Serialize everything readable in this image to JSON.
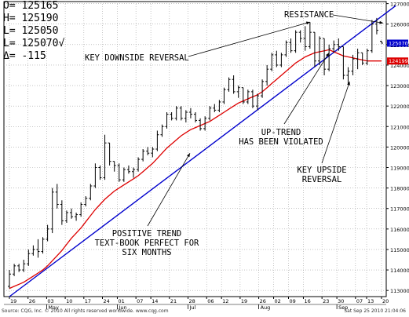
{
  "ohlc_readout": {
    "open": "O= 125165",
    "high": "H= 125190",
    "low": "L= 125050",
    "last": "L= 125070√",
    "delta": "Δ=    -115"
  },
  "footer": {
    "source": "Source: CQG, Inc. © 2010 All rights reserved worldwide. www.cqg.com",
    "timestamp": "Sat Sep 25 2010 21:04:06"
  },
  "colors": {
    "bars": "#000000",
    "moving_average": "#dd0000",
    "trend_line": "#0000cc",
    "grid": "#a0a0a0",
    "last_price_tag": "#0000cc",
    "ma_price_tag": "#dd0000"
  },
  "chart_data": {
    "type": "ohlc",
    "x_axis": {
      "day_ticks": [
        "19",
        "26",
        "03",
        "10",
        "17",
        "24",
        "01",
        "07",
        "14",
        "21",
        "28",
        "06",
        "12",
        "19",
        "26",
        "02",
        "09",
        "16",
        "23",
        "30",
        "07",
        "13",
        "20"
      ],
      "month_labels": [
        "May",
        "Jun",
        "Jul",
        "Aug",
        "Sep"
      ]
    },
    "y_axis": {
      "range": [
        112700,
        127100
      ],
      "ticks": [
        "127000",
        "126000",
        "125000",
        "124000",
        "123000",
        "122000",
        "121000",
        "120000",
        "119000",
        "118000",
        "117000",
        "116000",
        "115000",
        "114000",
        "113000"
      ]
    },
    "price_tags": {
      "last": "125070",
      "moving_average": "124199"
    },
    "series": [
      {
        "kind": "ohlc",
        "bars": [
          [
            113200,
            114000,
            113100,
            113800
          ],
          [
            113800,
            114300,
            113700,
            114200
          ],
          [
            114200,
            114300,
            113900,
            114000
          ],
          [
            114000,
            114500,
            113900,
            114300
          ],
          [
            114300,
            115000,
            114200,
            114800
          ],
          [
            114800,
            115200,
            114700,
            115000
          ],
          [
            115000,
            115500,
            114600,
            114900
          ],
          [
            114900,
            115600,
            114800,
            115500
          ],
          [
            115500,
            116200,
            115400,
            116000
          ],
          [
            116000,
            118000,
            115800,
            117800
          ],
          [
            117800,
            118200,
            117000,
            117200
          ],
          [
            117200,
            117400,
            116200,
            116400
          ],
          [
            116400,
            116900,
            116300,
            116800
          ],
          [
            116800,
            117000,
            116500,
            116600
          ],
          [
            116600,
            116800,
            116400,
            116700
          ],
          [
            116700,
            117300,
            116600,
            117200
          ],
          [
            117200,
            117600,
            117100,
            117500
          ],
          [
            117500,
            118200,
            117400,
            118100
          ],
          [
            118100,
            119200,
            118000,
            119000
          ],
          [
            119000,
            119100,
            118400,
            118500
          ],
          [
            118500,
            120600,
            118400,
            120200
          ],
          [
            120200,
            120200,
            119100,
            119300
          ],
          [
            119300,
            119300,
            118800,
            119100
          ],
          [
            119100,
            119200,
            118300,
            118400
          ],
          [
            118400,
            119000,
            118300,
            118900
          ],
          [
            118900,
            119100,
            118700,
            118800
          ],
          [
            118800,
            119000,
            118500,
            118900
          ],
          [
            118900,
            119500,
            118800,
            119400
          ],
          [
            119400,
            119900,
            119300,
            119800
          ],
          [
            119800,
            120000,
            119600,
            119700
          ],
          [
            119700,
            120000,
            119500,
            119900
          ],
          [
            119900,
            120800,
            119800,
            120600
          ],
          [
            120600,
            121100,
            120500,
            121000
          ],
          [
            121000,
            121700,
            120900,
            121600
          ],
          [
            121600,
            121700,
            121300,
            121400
          ],
          [
            121400,
            122000,
            121300,
            121900
          ],
          [
            121900,
            122000,
            121300,
            121400
          ],
          [
            121400,
            121800,
            121200,
            121700
          ],
          [
            121700,
            121900,
            121400,
            121600
          ],
          [
            121600,
            121700,
            121200,
            121300
          ],
          [
            121300,
            121400,
            120800,
            120900
          ],
          [
            120900,
            121500,
            120800,
            121400
          ],
          [
            121400,
            122000,
            121300,
            121900
          ],
          [
            121900,
            122100,
            121700,
            121800
          ],
          [
            121800,
            122300,
            121700,
            122200
          ],
          [
            122200,
            122900,
            122100,
            122800
          ],
          [
            122800,
            123400,
            122700,
            123300
          ],
          [
            123300,
            123500,
            122600,
            122700
          ],
          [
            122700,
            123000,
            122400,
            122900
          ],
          [
            122900,
            122900,
            122100,
            122200
          ],
          [
            122200,
            122800,
            122100,
            122700
          ],
          [
            122700,
            122800,
            121900,
            122000
          ],
          [
            122000,
            122600,
            121800,
            122500
          ],
          [
            122500,
            123300,
            122400,
            123200
          ],
          [
            123200,
            124000,
            123000,
            123800
          ],
          [
            123800,
            124600,
            123700,
            124500
          ],
          [
            124500,
            124700,
            123900,
            124000
          ],
          [
            124000,
            124600,
            123900,
            124500
          ],
          [
            124500,
            125200,
            124400,
            125100
          ],
          [
            125100,
            125300,
            124600,
            124700
          ],
          [
            124700,
            125700,
            124600,
            125600
          ],
          [
            125600,
            125700,
            125100,
            125300
          ],
          [
            125300,
            125900,
            124700,
            124900
          ],
          [
            124900,
            126100,
            124800,
            125600
          ],
          [
            125600,
            125600,
            123900,
            124200
          ],
          [
            124200,
            125400,
            124000,
            125300
          ],
          [
            125300,
            125300,
            123500,
            123800
          ],
          [
            123800,
            125000,
            123700,
            124800
          ],
          [
            124800,
            125200,
            124600,
            125000
          ],
          [
            125000,
            125300,
            124700,
            124900
          ],
          [
            124900,
            124900,
            123300,
            123500
          ],
          [
            123500,
            123900,
            123100,
            123700
          ],
          [
            123700,
            124500,
            123500,
            124300
          ],
          [
            124300,
            124800,
            123800,
            124600
          ],
          [
            124600,
            124600,
            124000,
            124100
          ],
          [
            124100,
            124800,
            124000,
            124700
          ],
          [
            124700,
            126200,
            124600,
            126000
          ],
          [
            126000,
            126300,
            125500,
            125700
          ],
          [
            125165,
            125190,
            125050,
            125070
          ]
        ]
      },
      {
        "kind": "moving_average",
        "values": [
          113100,
          113200,
          113300,
          113400,
          113550,
          113700,
          113850,
          114000,
          114200,
          114450,
          114700,
          114950,
          115250,
          115550,
          115800,
          116050,
          116350,
          116650,
          116950,
          117200,
          117450,
          117650,
          117850,
          118000,
          118150,
          118300,
          118450,
          118600,
          118800,
          119000,
          119200,
          119450,
          119700,
          119950,
          120150,
          120350,
          120550,
          120700,
          120850,
          120950,
          121050,
          121150,
          121250,
          121400,
          121550,
          121700,
          121850,
          122000,
          122150,
          122250,
          122350,
          122450,
          122550,
          122700,
          122900,
          123100,
          123300,
          123500,
          123700,
          123900,
          124100,
          124250,
          124400,
          124500,
          124600,
          124650,
          124700,
          124750,
          124650,
          124550,
          124450,
          124400,
          124350,
          124300,
          124250,
          124200,
          124200,
          124200,
          124199
        ]
      },
      {
        "kind": "trend_line",
        "from": [
          0,
          112700
        ],
        "to": [
          81,
          126900
        ]
      }
    ]
  },
  "annotations": [
    {
      "id": "key-downside-reversal",
      "text": "KEY DOWNSIDE REVERSAL",
      "points_to": "Aug 23 high"
    },
    {
      "id": "resistance",
      "text": "RESISTANCE",
      "points_to": "trend line, Sep 20"
    },
    {
      "id": "uptrend-violated",
      "text": "UP-TREND\nHAS BEEN VIOLATED",
      "points_to": "trend line break, Sep 01"
    },
    {
      "id": "key-upside-reversal",
      "text": "KEY UPSIDE\nREVERSAL",
      "points_to": "Sep 07 low"
    },
    {
      "id": "positive-trend",
      "text": "POSITIVE TREND\nTEXT-BOOK PERFECT FOR\nSIX MONTHS",
      "points_to": "trend line, June–July"
    }
  ]
}
